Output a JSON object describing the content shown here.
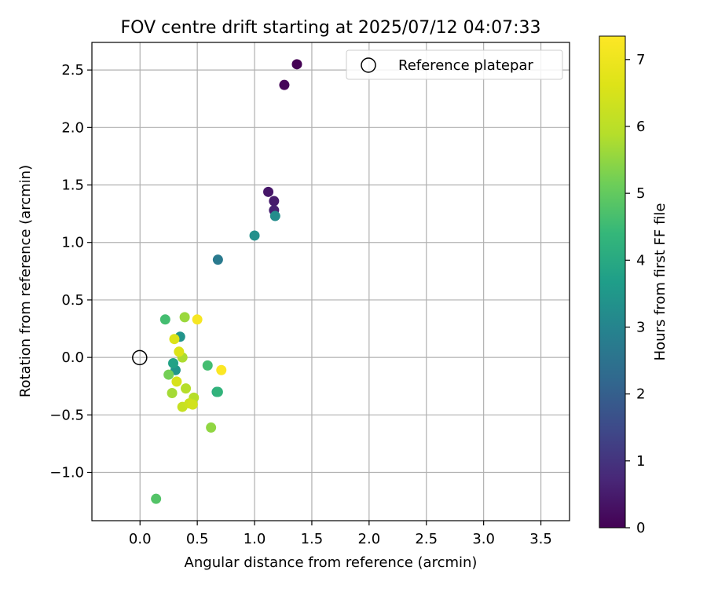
{
  "chart_data": {
    "type": "scatter",
    "title": "FOV centre drift starting at 2025/07/12 04:07:33",
    "xlabel": "Angular distance from reference (arcmin)",
    "ylabel": "Rotation from reference (arcmin)",
    "xlim": [
      -0.42,
      3.75
    ],
    "ylim": [
      -1.42,
      2.74
    ],
    "xticks": [
      0.0,
      0.5,
      1.0,
      1.5,
      2.0,
      2.5,
      3.0,
      3.5
    ],
    "xtick_labels": [
      "0.0",
      "0.5",
      "1.0",
      "1.5",
      "2.0",
      "2.5",
      "3.0",
      "3.5"
    ],
    "yticks": [
      -1.0,
      -0.5,
      0.0,
      0.5,
      1.0,
      1.5,
      2.0,
      2.5
    ],
    "ytick_labels": [
      "−1.0",
      "−0.5",
      "0.0",
      "0.5",
      "1.0",
      "1.5",
      "2.0",
      "2.5"
    ],
    "grid": true,
    "legend": {
      "position": "top-right",
      "entries": [
        {
          "label": "Reference platepar",
          "marker": "open-circle"
        }
      ]
    },
    "reference_point": {
      "x": 0.0,
      "y": 0.0,
      "label": "Reference platepar"
    },
    "colorbar": {
      "label": "Hours from first FF file",
      "colormap": "viridis",
      "range": [
        0,
        7.35
      ],
      "ticks": [
        0,
        1,
        2,
        3,
        4,
        5,
        6,
        7
      ],
      "tick_labels": [
        "0",
        "1",
        "2",
        "3",
        "4",
        "5",
        "6",
        "7"
      ]
    },
    "points": [
      {
        "x": 1.37,
        "y": 2.55,
        "hours": 0.0
      },
      {
        "x": 1.26,
        "y": 2.37,
        "hours": 0.1
      },
      {
        "x": 1.12,
        "y": 1.44,
        "hours": 0.4
      },
      {
        "x": 1.17,
        "y": 1.36,
        "hours": 0.5
      },
      {
        "x": 1.17,
        "y": 1.28,
        "hours": 0.6
      },
      {
        "x": 1.18,
        "y": 1.23,
        "hours": 3.2
      },
      {
        "x": 1.0,
        "y": 1.06,
        "hours": 3.3
      },
      {
        "x": 0.68,
        "y": 0.85,
        "hours": 2.7
      },
      {
        "x": 0.35,
        "y": 0.18,
        "hours": 3.4
      },
      {
        "x": 0.31,
        "y": -0.11,
        "hours": 3.5
      },
      {
        "x": 0.29,
        "y": -0.05,
        "hours": 3.8
      },
      {
        "x": 0.67,
        "y": -0.3,
        "hours": 4.1
      },
      {
        "x": 0.68,
        "y": -0.3,
        "hours": 4.3
      },
      {
        "x": 0.22,
        "y": 0.33,
        "hours": 4.6
      },
      {
        "x": 0.59,
        "y": -0.07,
        "hours": 4.6
      },
      {
        "x": 0.14,
        "y": -1.23,
        "hours": 4.8
      },
      {
        "x": 0.25,
        "y": -0.15,
        "hours": 5.2
      },
      {
        "x": 0.39,
        "y": 0.35,
        "hours": 5.6
      },
      {
        "x": 0.62,
        "y": -0.61,
        "hours": 5.5
      },
      {
        "x": 0.28,
        "y": -0.31,
        "hours": 5.7
      },
      {
        "x": 0.37,
        "y": 0.0,
        "hours": 5.8
      },
      {
        "x": 0.4,
        "y": -0.27,
        "hours": 5.9
      },
      {
        "x": 0.47,
        "y": -0.35,
        "hours": 5.9
      },
      {
        "x": 0.37,
        "y": -0.43,
        "hours": 6.2
      },
      {
        "x": 0.43,
        "y": -0.4,
        "hours": 6.3
      },
      {
        "x": 0.46,
        "y": -0.41,
        "hours": 6.4
      },
      {
        "x": 0.32,
        "y": -0.21,
        "hours": 6.5
      },
      {
        "x": 0.34,
        "y": 0.05,
        "hours": 6.6
      },
      {
        "x": 0.3,
        "y": 0.16,
        "hours": 6.6
      },
      {
        "x": 0.5,
        "y": 0.33,
        "hours": 7.2
      },
      {
        "x": 0.71,
        "y": -0.11,
        "hours": 7.3
      }
    ]
  }
}
